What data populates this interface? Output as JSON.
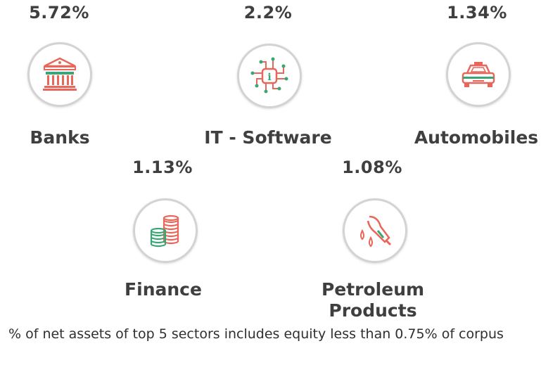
{
  "sectors": [
    {
      "name": "Banks",
      "percent": "5.72%",
      "icon": "bank-icon"
    },
    {
      "name": "IT - Software",
      "percent": "2.2%",
      "icon": "circuit-chip-icon"
    },
    {
      "name": "Automobiles",
      "percent": "1.34%",
      "icon": "car-icon"
    },
    {
      "name": "Finance",
      "percent": "1.13%",
      "icon": "coin-stack-icon"
    },
    {
      "name": "Petroleum Products",
      "percent": "1.08%",
      "icon": "fuel-nozzle-icon"
    }
  ],
  "footnote": "% of net assets of top 5 sectors includes equity less than 0.75% of corpus",
  "colors": {
    "red": "#e8675a",
    "green": "#3aa575",
    "text": "#3f3f3f"
  }
}
